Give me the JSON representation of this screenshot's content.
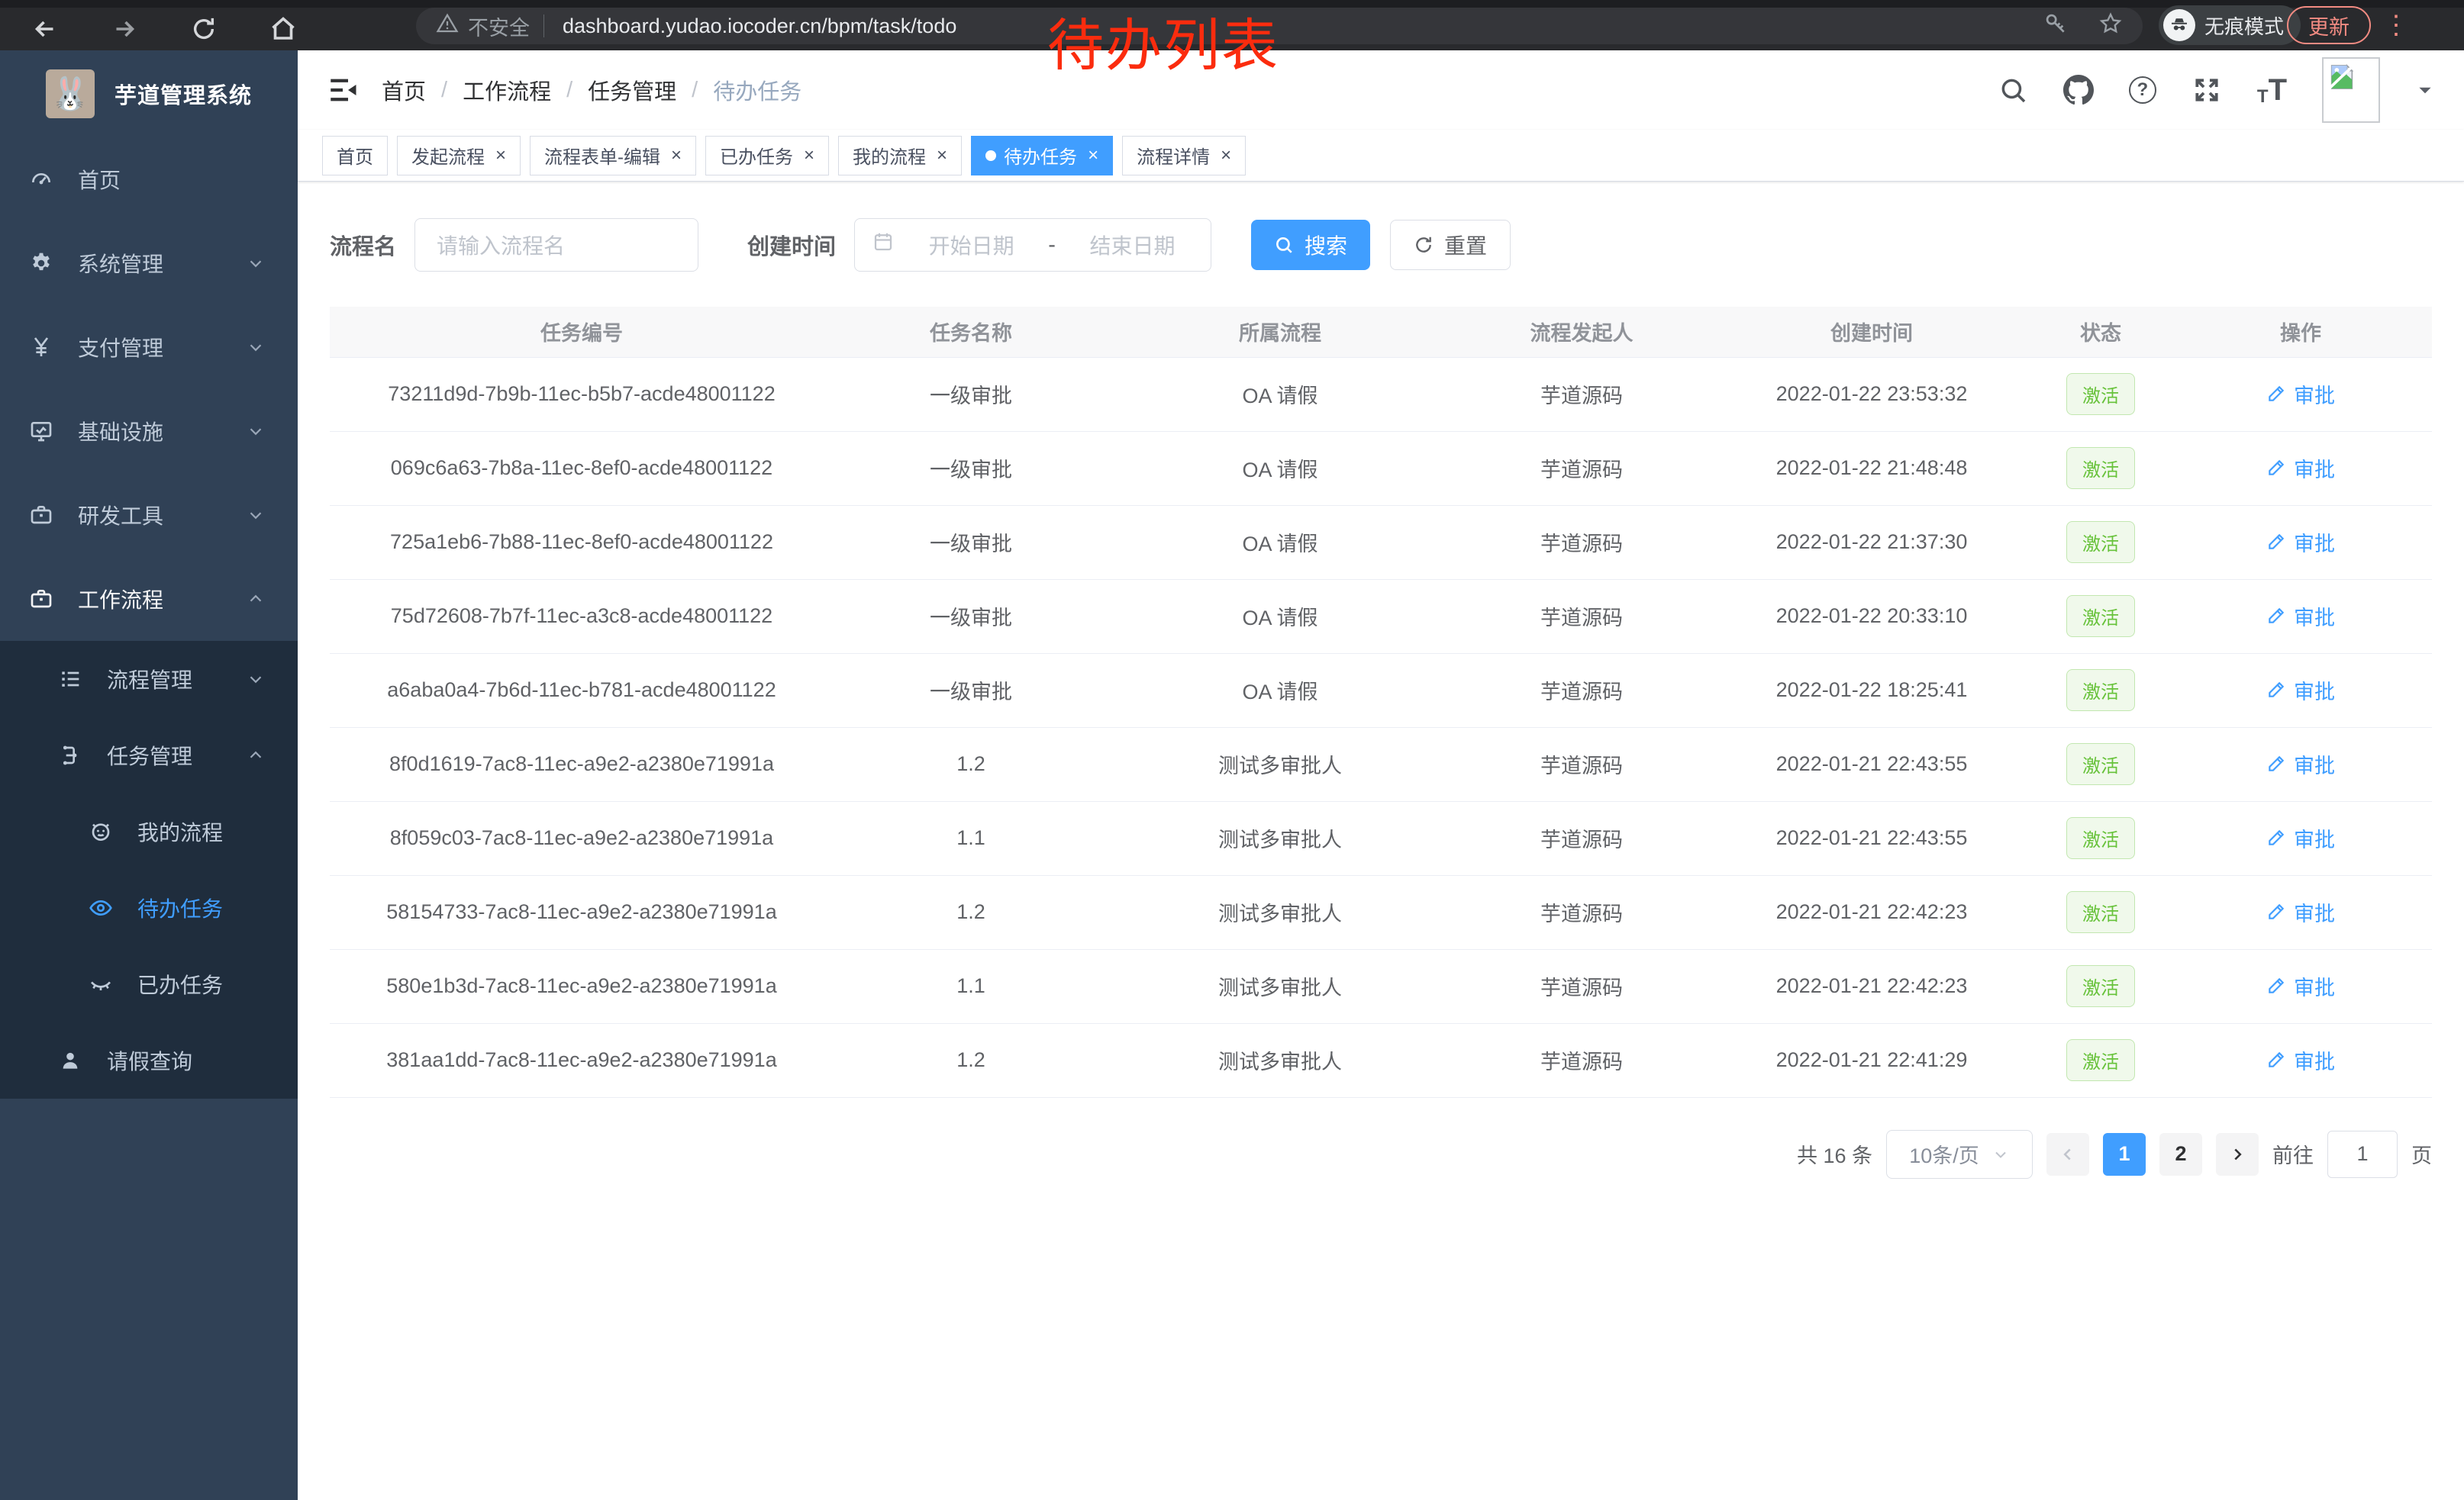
{
  "browser": {
    "security_label": "不安全",
    "url": "dashboard.yudao.iocoder.cn/bpm/task/todo",
    "incognito_label": "无痕模式",
    "update_label": "更新"
  },
  "annotation": {
    "text": "待办列表",
    "color": "#fb2c0e"
  },
  "sidebar": {
    "title": "芋道管理系统",
    "logo_icon": "rabbit-logo",
    "menu": [
      {
        "label": "首页",
        "icon": "dashboard-icon",
        "level": 1,
        "chevron": "",
        "submenu": false,
        "active": false,
        "open": false
      },
      {
        "label": "系统管理",
        "icon": "gear-icon",
        "level": 1,
        "chevron": "down",
        "submenu": false,
        "active": false,
        "open": false
      },
      {
        "label": "支付管理",
        "icon": "yen-icon",
        "level": 1,
        "chevron": "down",
        "submenu": false,
        "active": false,
        "open": false
      },
      {
        "label": "基础设施",
        "icon": "monitor-icon",
        "level": 1,
        "chevron": "down",
        "submenu": false,
        "active": false,
        "open": false
      },
      {
        "label": "研发工具",
        "icon": "briefcase-icon",
        "level": 1,
        "chevron": "down",
        "submenu": false,
        "active": false,
        "open": false
      },
      {
        "label": "工作流程",
        "icon": "briefcase-icon",
        "level": 1,
        "chevron": "up",
        "submenu": false,
        "active": false,
        "open": true
      },
      {
        "label": "流程管理",
        "icon": "list-icon",
        "level": 2,
        "chevron": "down",
        "submenu": true,
        "active": false,
        "open": false
      },
      {
        "label": "任务管理",
        "icon": "tree-icon",
        "level": 2,
        "chevron": "up",
        "submenu": true,
        "active": false,
        "open": true
      },
      {
        "label": "我的流程",
        "icon": "robot-icon",
        "level": 3,
        "chevron": "",
        "submenu": true,
        "active": false,
        "open": false
      },
      {
        "label": "待办任务",
        "icon": "eye-icon",
        "level": 3,
        "chevron": "",
        "submenu": true,
        "active": true,
        "open": false
      },
      {
        "label": "已办任务",
        "icon": "eye-closed-icon",
        "level": 3,
        "chevron": "",
        "submenu": true,
        "active": false,
        "open": false
      },
      {
        "label": "请假查询",
        "icon": "user-icon",
        "level": 2,
        "chevron": "",
        "submenu": true,
        "active": false,
        "open": false
      }
    ]
  },
  "header": {
    "breadcrumb": [
      "首页",
      "工作流程",
      "任务管理",
      "待办任务"
    ],
    "icons": [
      "search-icon",
      "github-icon",
      "help-icon",
      "fullscreen-icon",
      "textsize-icon",
      "avatar",
      "caret-down-icon"
    ]
  },
  "tabs": [
    {
      "label": "首页",
      "closable": false,
      "active": false
    },
    {
      "label": "发起流程",
      "closable": true,
      "active": false
    },
    {
      "label": "流程表单-编辑",
      "closable": true,
      "active": false
    },
    {
      "label": "已办任务",
      "closable": true,
      "active": false
    },
    {
      "label": "我的流程",
      "closable": true,
      "active": false
    },
    {
      "label": "待办任务",
      "closable": true,
      "active": true
    },
    {
      "label": "流程详情",
      "closable": true,
      "active": false
    }
  ],
  "filters": {
    "process_name_label": "流程名",
    "process_name_placeholder": "请输入流程名",
    "create_time_label": "创建时间",
    "date_start_placeholder": "开始日期",
    "date_separator": "-",
    "date_end_placeholder": "结束日期",
    "search_label": "搜索",
    "reset_label": "重置"
  },
  "table": {
    "columns": [
      "任务编号",
      "任务名称",
      "所属流程",
      "流程发起人",
      "创建时间",
      "状态",
      "操作"
    ],
    "rows": [
      {
        "id": "73211d9d-7b9b-11ec-b5b7-acde48001122",
        "name": "一级审批",
        "process": "OA 请假",
        "starter": "芋道源码",
        "created": "2022-01-22 23:53:32",
        "status": "激活",
        "action": "审批"
      },
      {
        "id": "069c6a63-7b8a-11ec-8ef0-acde48001122",
        "name": "一级审批",
        "process": "OA 请假",
        "starter": "芋道源码",
        "created": "2022-01-22 21:48:48",
        "status": "激活",
        "action": "审批"
      },
      {
        "id": "725a1eb6-7b88-11ec-8ef0-acde48001122",
        "name": "一级审批",
        "process": "OA 请假",
        "starter": "芋道源码",
        "created": "2022-01-22 21:37:30",
        "status": "激活",
        "action": "审批"
      },
      {
        "id": "75d72608-7b7f-11ec-a3c8-acde48001122",
        "name": "一级审批",
        "process": "OA 请假",
        "starter": "芋道源码",
        "created": "2022-01-22 20:33:10",
        "status": "激活",
        "action": "审批"
      },
      {
        "id": "a6aba0a4-7b6d-11ec-b781-acde48001122",
        "name": "一级审批",
        "process": "OA 请假",
        "starter": "芋道源码",
        "created": "2022-01-22 18:25:41",
        "status": "激活",
        "action": "审批"
      },
      {
        "id": "8f0d1619-7ac8-11ec-a9e2-a2380e71991a",
        "name": "1.2",
        "process": "测试多审批人",
        "starter": "芋道源码",
        "created": "2022-01-21 22:43:55",
        "status": "激活",
        "action": "审批"
      },
      {
        "id": "8f059c03-7ac8-11ec-a9e2-a2380e71991a",
        "name": "1.1",
        "process": "测试多审批人",
        "starter": "芋道源码",
        "created": "2022-01-21 22:43:55",
        "status": "激活",
        "action": "审批"
      },
      {
        "id": "58154733-7ac8-11ec-a9e2-a2380e71991a",
        "name": "1.2",
        "process": "测试多审批人",
        "starter": "芋道源码",
        "created": "2022-01-21 22:42:23",
        "status": "激活",
        "action": "审批"
      },
      {
        "id": "580e1b3d-7ac8-11ec-a9e2-a2380e71991a",
        "name": "1.1",
        "process": "测试多审批人",
        "starter": "芋道源码",
        "created": "2022-01-21 22:42:23",
        "status": "激活",
        "action": "审批"
      },
      {
        "id": "381aa1dd-7ac8-11ec-a9e2-a2380e71991a",
        "name": "1.2",
        "process": "测试多审批人",
        "starter": "芋道源码",
        "created": "2022-01-21 22:41:29",
        "status": "激活",
        "action": "审批"
      }
    ]
  },
  "pagination": {
    "total_label": "共 16 条",
    "page_size_label": "10条/页",
    "pages": [
      "1",
      "2"
    ],
    "active_page": "1",
    "goto_label": "前往",
    "goto_value": "1",
    "goto_suffix": "页"
  },
  "colors": {
    "primary": "#409eff",
    "sidebar_bg": "#304156",
    "submenu_bg": "#1f2d3d",
    "status_green": "#67c23a",
    "annotation_red": "#fb2c0e",
    "update_salmon": "#f28b82"
  }
}
